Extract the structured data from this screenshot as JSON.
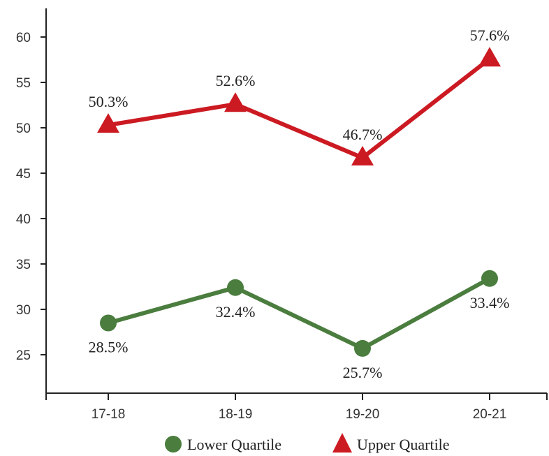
{
  "chart_data": {
    "type": "line",
    "categories": [
      "17-18",
      "18-19",
      "19-20",
      "20-21"
    ],
    "ylim": [
      20,
      64
    ],
    "yticks": [
      25,
      30,
      35,
      40,
      45,
      50,
      55,
      60
    ],
    "grid": false,
    "legend_position": "bottom",
    "series": [
      {
        "name": "Lower Quartile",
        "marker": "circle",
        "color": "#4a7d3e",
        "values": [
          28.5,
          32.4,
          25.7,
          33.4
        ],
        "labels": [
          "28.5%",
          "32.4%",
          "25.7%",
          "33.4%"
        ],
        "label_side": "below"
      },
      {
        "name": "Upper Quartile",
        "marker": "triangle",
        "color": "#cc1a22",
        "values": [
          50.3,
          52.6,
          46.7,
          57.6
        ],
        "labels": [
          "50.3%",
          "52.6%",
          "46.7%",
          "57.6%"
        ],
        "label_side": "above"
      }
    ]
  }
}
